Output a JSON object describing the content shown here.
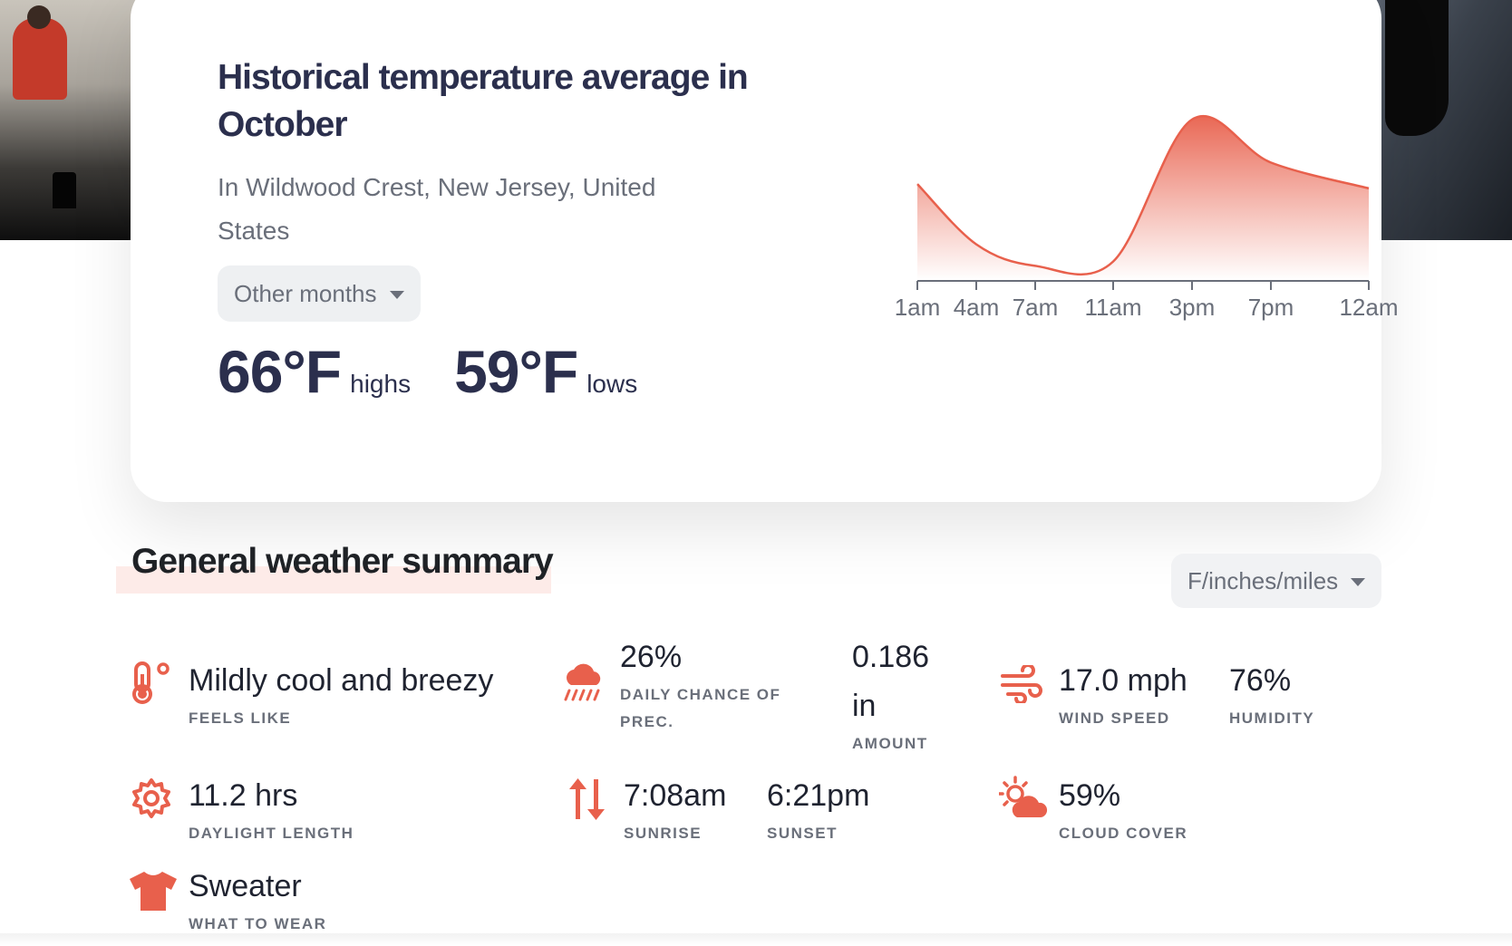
{
  "card": {
    "title": "Historical temperature average in October",
    "subtitle": "In Wildwood Crest, New Jersey, United States",
    "months_button": "Other months",
    "highs_value": "66°F",
    "highs_label": "highs",
    "lows_value": "59°F",
    "lows_label": "lows"
  },
  "chart_data": {
    "type": "area",
    "categories": [
      "1am",
      "4am",
      "7am",
      "11am",
      "3pm",
      "7pm",
      "12am"
    ],
    "title": "",
    "xlabel": "",
    "ylabel": "",
    "series": [
      {
        "values": [
          62.8,
          60.0,
          59.0,
          59.2,
          65.8,
          63.8,
          62.6
        ]
      }
    ],
    "colors": {
      "line": "#e8604c",
      "fill_top": "#e8604c",
      "fill_bottom": "#ffffff"
    },
    "grid": false
  },
  "summary": {
    "title": "General weather summary",
    "units_button": "F/inches/miles",
    "feels_like": {
      "value": "Mildly cool and breezy",
      "label": "Feels like",
      "icon": "thermometer-icon"
    },
    "precip_chance": {
      "value": "26%",
      "label": "Daily chance of prec.",
      "icon": "rain-cloud-icon"
    },
    "precip_amount": {
      "value": "0.186 in",
      "label": "Amount"
    },
    "wind_speed": {
      "value": "17.0 mph",
      "label": "Wind speed",
      "icon": "wind-icon"
    },
    "humidity": {
      "value": "76%",
      "label": "Humidity"
    },
    "daylight": {
      "value": "11.2 hrs",
      "label": "Daylight length",
      "icon": "sun-gear-icon"
    },
    "sunrise": {
      "value": "7:08am",
      "label": "Sunrise",
      "icon": "sunrise-sunset-arrows-icon"
    },
    "sunset": {
      "value": "6:21pm",
      "label": "Sunset"
    },
    "cloud_cover": {
      "value": "59%",
      "label": "Cloud cover",
      "icon": "partly-cloudy-icon"
    },
    "what_to_wear": {
      "value": "Sweater",
      "label": "What to wear",
      "icon": "tshirt-icon"
    }
  },
  "colors": {
    "accent": "#e8604c",
    "heading": "#2b2f4d",
    "muted": "#6a6f7a"
  }
}
